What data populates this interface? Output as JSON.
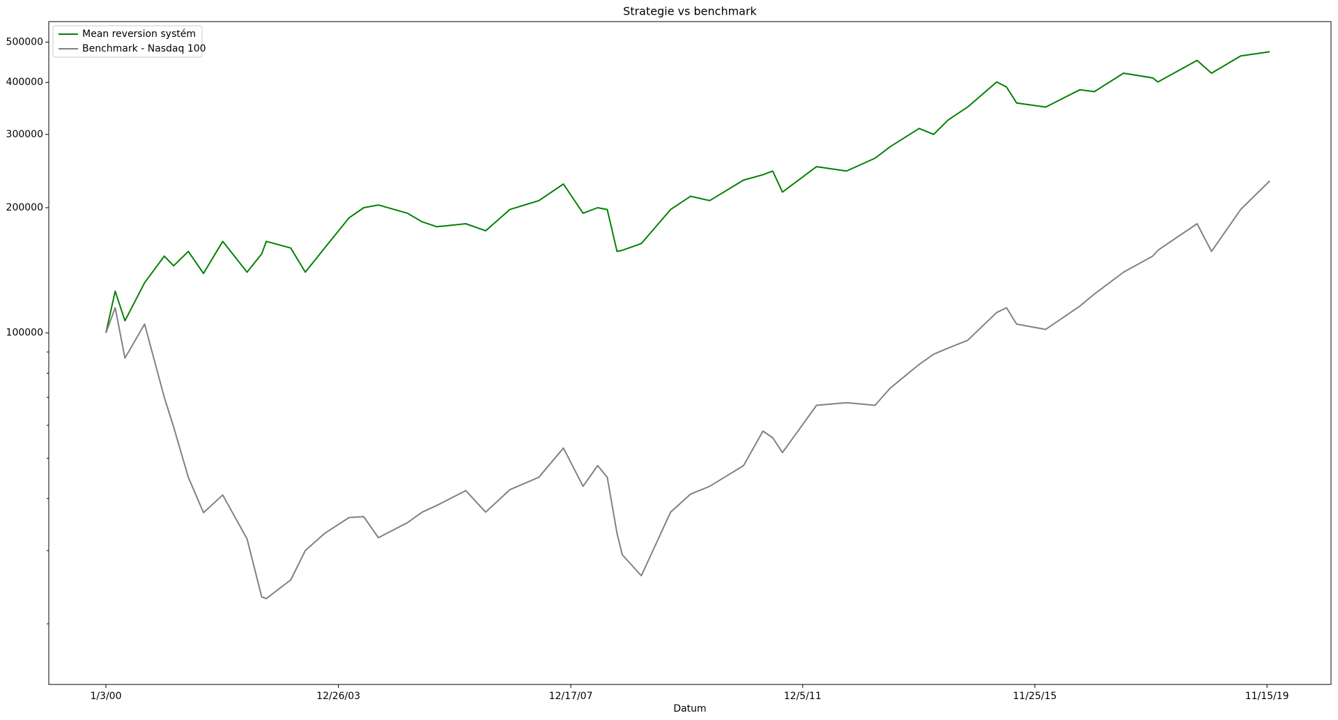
{
  "chart_data": {
    "type": "line",
    "title": "Strategie vs benchmark",
    "x_label": "Datum",
    "log_y": true,
    "legend": "upper left",
    "x": [
      "1/3/00",
      "3/1/00",
      "5/1/00",
      "9/1/00",
      "1/2/01",
      "3/1/01",
      "6/1/01",
      "9/4/01",
      "1/2/02",
      "6/3/02",
      "9/3/02",
      "10/1/02",
      "3/3/03",
      "6/2/03",
      "10/1/03",
      "3/1/04",
      "6/1/04",
      "9/1/04",
      "3/1/05",
      "6/1/05",
      "9/1/05",
      "3/1/06",
      "7/3/06",
      "12/1/06",
      "6/1/07",
      "11/1/07",
      "3/3/08",
      "6/2/08",
      "8/1/08",
      "10/1/08",
      "11/3/08",
      "3/2/09",
      "9/1/09",
      "1/4/10",
      "5/3/10",
      "12/1/10",
      "4/1/11",
      "6/1/11",
      "8/1/11",
      "3/1/12",
      "9/4/12",
      "3/1/13",
      "6/3/13",
      "12/2/13",
      "3/3/14",
      "6/2/14",
      "10/1/14",
      "4/1/15",
      "6/1/15",
      "8/3/15",
      "2/1/16",
      "9/1/16",
      "12/1/16",
      "6/1/17",
      "12/1/17",
      "1/2/18",
      "9/4/18",
      "12/3/18",
      "6/3/19",
      "12/2/19"
    ],
    "series": [
      {
        "name": "Mean reversion systém",
        "color": "#008000",
        "values": [
          100000,
          126000,
          107000,
          132000,
          153000,
          145000,
          157000,
          139000,
          166000,
          140000,
          155000,
          166000,
          160000,
          140000,
          160000,
          189000,
          200000,
          203000,
          194000,
          185000,
          180000,
          183000,
          176000,
          198000,
          208000,
          228000,
          194000,
          200000,
          198000,
          157000,
          158000,
          164000,
          198000,
          213000,
          208000,
          233000,
          240000,
          245000,
          218000,
          251000,
          245000,
          263000,
          280000,
          310000,
          300000,
          325000,
          349000,
          401000,
          390000,
          357000,
          349000,
          384000,
          380000,
          421000,
          410000,
          401000,
          452000,
          421000,
          463000,
          474000
        ]
      },
      {
        "name": "Benchmark - Nasdaq 100",
        "color": "#808080",
        "values": [
          100000,
          115000,
          87000,
          105000,
          70000,
          59500,
          45000,
          37000,
          40800,
          32000,
          23200,
          23000,
          25500,
          30000,
          33000,
          36000,
          36200,
          32200,
          35000,
          37100,
          38500,
          41800,
          37100,
          42000,
          45000,
          52900,
          42800,
          48000,
          45000,
          33000,
          29300,
          26100,
          37100,
          41000,
          42800,
          48000,
          58100,
          56000,
          51600,
          67000,
          68000,
          67000,
          73600,
          84000,
          88900,
          92000,
          96000,
          112000,
          115000,
          105000,
          102000,
          116000,
          124000,
          140000,
          153000,
          158000,
          183000,
          157000,
          198000,
          232000
        ]
      }
    ],
    "xlim": [
      "1/11/99",
      "12/19/20"
    ],
    "xticks": [
      "1/3/00",
      "12/26/03",
      "12/17/07",
      "12/5/11",
      "11/25/15",
      "11/15/19"
    ],
    "ylim": [
      14300,
      560000
    ],
    "yticks": [
      100000,
      200000,
      300000,
      400000,
      500000
    ],
    "yminorticks": [
      20000,
      30000,
      40000,
      50000,
      60000,
      70000,
      80000,
      90000
    ]
  }
}
